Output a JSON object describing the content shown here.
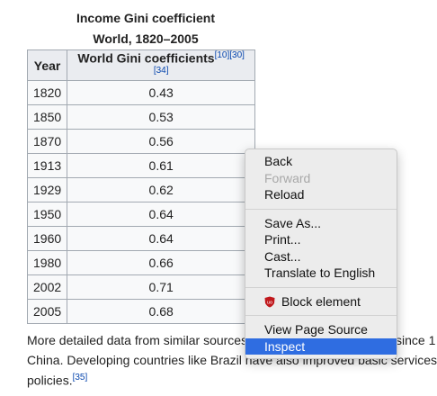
{
  "caption": {
    "title": "Income Gini coefficient",
    "subtitle": "World, 1820–2005"
  },
  "table": {
    "headers": [
      "Year",
      "World Gini coefficients"
    ],
    "header_refs": "[10][30][34]",
    "rows": [
      [
        "1820",
        "0.43"
      ],
      [
        "1850",
        "0.53"
      ],
      [
        "1870",
        "0.56"
      ],
      [
        "1913",
        "0.61"
      ],
      [
        "1929",
        "0.62"
      ],
      [
        "1950",
        "0.64"
      ],
      [
        "1960",
        "0.64"
      ],
      [
        "1980",
        "0.66"
      ],
      [
        "2002",
        "0.71"
      ],
      [
        "2005",
        "0.68"
      ]
    ]
  },
  "paragraph": {
    "line1_left": "More detailed data from similar sources",
    "line1_right": "since 1",
    "line2": "China. Developing countries like Brazil have also improved basic services",
    "line3": "policies.",
    "line3_ref": "[35]"
  },
  "context_menu": {
    "groups": [
      [
        {
          "label": "Back",
          "disabled": false
        },
        {
          "label": "Forward",
          "disabled": true
        },
        {
          "label": "Reload",
          "disabled": false
        }
      ],
      [
        {
          "label": "Save As...",
          "disabled": false
        },
        {
          "label": "Print...",
          "disabled": false
        },
        {
          "label": "Cast...",
          "disabled": false
        },
        {
          "label": "Translate to English",
          "disabled": false
        }
      ],
      [
        {
          "label": "Block element",
          "disabled": false,
          "icon": true
        }
      ],
      [
        {
          "label": "View Page Source",
          "disabled": false
        },
        {
          "label": "Inspect",
          "disabled": false,
          "highlighted": true
        }
      ]
    ]
  }
}
